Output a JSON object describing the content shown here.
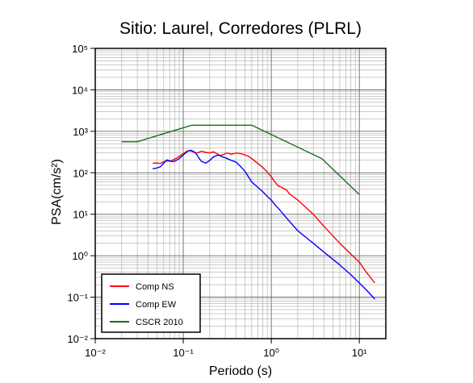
{
  "chart_data": {
    "type": "line",
    "title": "Sitio: Laurel, Corredores (PLRL)",
    "xlabel": "Periodo (s)",
    "ylabel": "PSA(cm/s²)",
    "xscale": "log",
    "yscale": "log",
    "xlim": [
      0.01,
      20
    ],
    "ylim": [
      0.01,
      100000
    ],
    "grid": true,
    "legend_position": "bottom-left",
    "x_tick_labels": [
      "10⁻²",
      "10⁻¹",
      "10⁰",
      "10¹"
    ],
    "y_tick_labels": [
      "10⁻²",
      "10⁻¹",
      "10⁰",
      "10¹",
      "10²",
      "10³",
      "10⁴",
      "10⁵"
    ],
    "series": [
      {
        "name": "Comp NS",
        "color": "#ff0000",
        "points": [
          [
            0.045,
            170
          ],
          [
            0.05,
            172
          ],
          [
            0.055,
            168
          ],
          [
            0.06,
            185
          ],
          [
            0.065,
            195
          ],
          [
            0.07,
            190
          ],
          [
            0.075,
            200
          ],
          [
            0.08,
            215
          ],
          [
            0.085,
            230
          ],
          [
            0.09,
            250
          ],
          [
            0.095,
            270
          ],
          [
            0.1,
            290
          ],
          [
            0.11,
            330
          ],
          [
            0.12,
            340
          ],
          [
            0.13,
            320
          ],
          [
            0.14,
            300
          ],
          [
            0.15,
            310
          ],
          [
            0.16,
            330
          ],
          [
            0.18,
            310
          ],
          [
            0.2,
            300
          ],
          [
            0.22,
            320
          ],
          [
            0.24,
            290
          ],
          [
            0.26,
            260
          ],
          [
            0.28,
            270
          ],
          [
            0.3,
            290
          ],
          [
            0.32,
            300
          ],
          [
            0.35,
            280
          ],
          [
            0.4,
            300
          ],
          [
            0.45,
            290
          ],
          [
            0.5,
            270
          ],
          [
            0.55,
            250
          ],
          [
            0.6,
            220
          ],
          [
            0.7,
            170
          ],
          [
            0.8,
            135
          ],
          [
            0.9,
            105
          ],
          [
            1.0,
            80
          ],
          [
            1.1,
            60
          ],
          [
            1.2,
            48
          ],
          [
            1.3,
            45
          ],
          [
            1.5,
            38
          ],
          [
            1.6,
            31
          ],
          [
            2.0,
            22
          ],
          [
            3.0,
            10
          ],
          [
            4.0,
            5
          ],
          [
            6.0,
            2
          ],
          [
            8.0,
            1.1
          ],
          [
            10.0,
            0.7
          ],
          [
            12.0,
            0.4
          ],
          [
            15.0,
            0.22
          ]
        ]
      },
      {
        "name": "Comp EW",
        "color": "#0000ff",
        "points": [
          [
            0.045,
            125
          ],
          [
            0.05,
            130
          ],
          [
            0.055,
            140
          ],
          [
            0.06,
            170
          ],
          [
            0.065,
            205
          ],
          [
            0.07,
            195
          ],
          [
            0.075,
            185
          ],
          [
            0.08,
            190
          ],
          [
            0.09,
            220
          ],
          [
            0.1,
            270
          ],
          [
            0.11,
            320
          ],
          [
            0.12,
            350
          ],
          [
            0.13,
            330
          ],
          [
            0.14,
            290
          ],
          [
            0.15,
            230
          ],
          [
            0.16,
            190
          ],
          [
            0.18,
            170
          ],
          [
            0.2,
            200
          ],
          [
            0.22,
            240
          ],
          [
            0.25,
            270
          ],
          [
            0.28,
            240
          ],
          [
            0.3,
            230
          ],
          [
            0.35,
            200
          ],
          [
            0.4,
            180
          ],
          [
            0.45,
            140
          ],
          [
            0.5,
            110
          ],
          [
            0.55,
            80
          ],
          [
            0.6,
            60
          ],
          [
            0.7,
            45
          ],
          [
            0.8,
            35
          ],
          [
            0.9,
            27
          ],
          [
            1.0,
            22
          ],
          [
            1.1,
            17
          ],
          [
            1.2,
            14
          ],
          [
            1.5,
            8
          ],
          [
            2.0,
            4
          ],
          [
            3.0,
            2
          ],
          [
            4.0,
            1.2
          ],
          [
            6.0,
            0.6
          ],
          [
            8.0,
            0.35
          ],
          [
            10.0,
            0.22
          ],
          [
            12.0,
            0.15
          ],
          [
            15.0,
            0.09
          ]
        ]
      },
      {
        "name": "CSCR 2010",
        "color": "#1a6e1a",
        "points": [
          [
            0.02,
            560
          ],
          [
            0.03,
            560
          ],
          [
            0.0625,
            900
          ],
          [
            0.125,
            1400
          ],
          [
            0.6,
            1400
          ],
          [
            3.75,
            220
          ],
          [
            10.0,
            30
          ]
        ]
      }
    ]
  }
}
